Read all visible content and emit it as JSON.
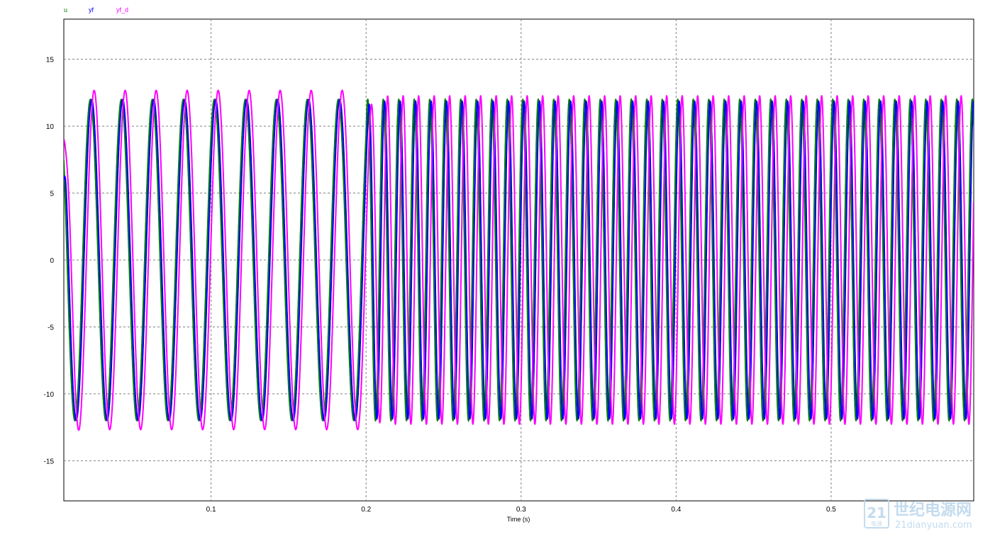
{
  "chart_data": {
    "type": "line",
    "xlabel": "Time (s)",
    "ylabel": "",
    "xlim": [
      0.005,
      0.592
    ],
    "ylim": [
      -18,
      18
    ],
    "x_ticks": [
      0.1,
      0.2,
      0.3,
      0.4,
      0.5
    ],
    "x_tick_labels": [
      "0.1",
      "0.2",
      "0.3",
      "0.4",
      "0.5"
    ],
    "y_ticks": [
      15,
      10,
      5,
      0,
      -5,
      -10,
      -15
    ],
    "y_tick_labels": [
      "15",
      "10",
      "5",
      "0",
      "-5",
      "-10",
      "-15"
    ],
    "grid": true,
    "legend_position": "top-left",
    "amplitude": 12,
    "series": [
      {
        "name": "u",
        "color": "#007f00"
      },
      {
        "name": "yf",
        "color": "#0000ff"
      },
      {
        "name": "yf_d",
        "color": "#ff00ff"
      }
    ],
    "segments": [
      {
        "t_start": 0.0,
        "t_end": 0.2,
        "frequency_hz": 50
      },
      {
        "t_start": 0.2,
        "t_end": 0.592,
        "frequency_hz": 100
      }
    ]
  },
  "watermark": {
    "logo_digits": "21",
    "logo_sub": "电源",
    "title": "世纪电源网",
    "site": "21dianyuan.com",
    "color": "#b9d5ec"
  }
}
